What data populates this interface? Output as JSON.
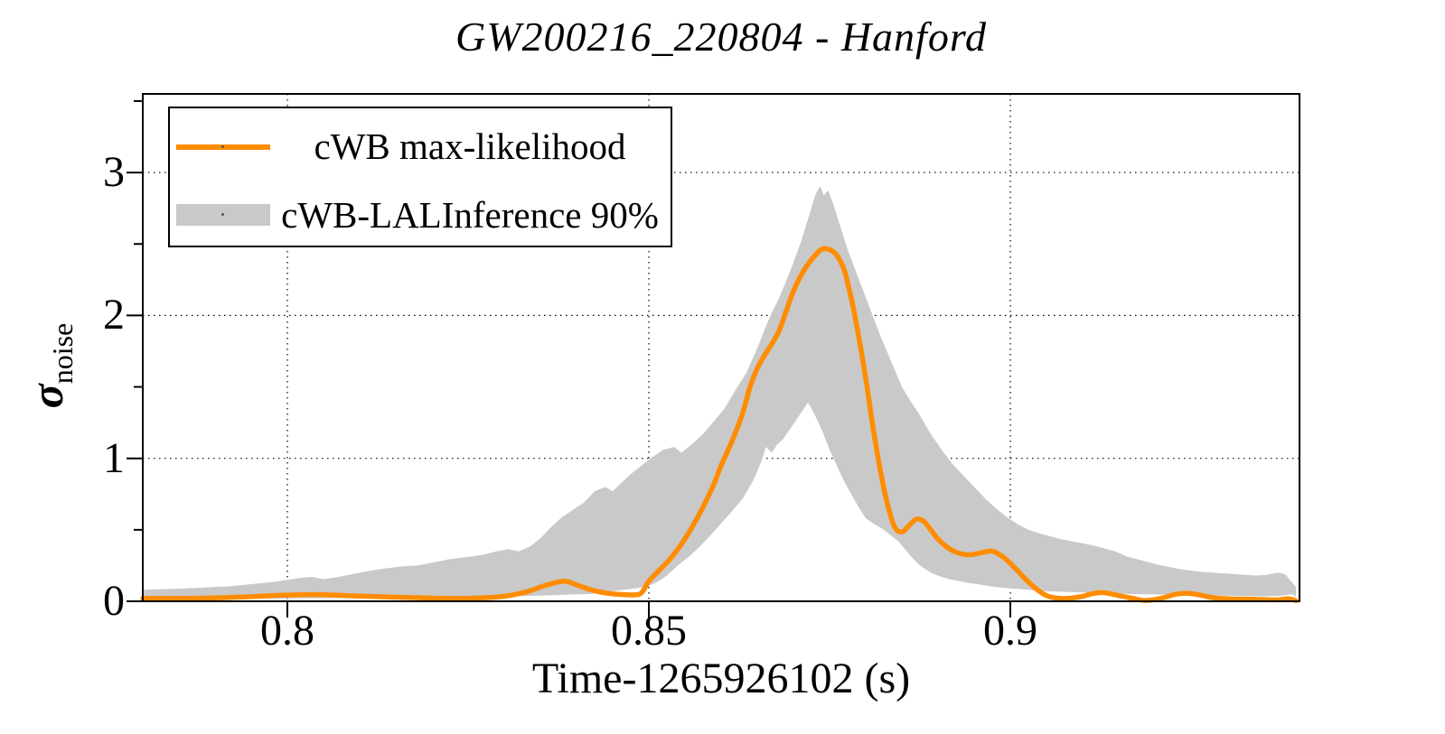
{
  "chart_data": {
    "type": "line",
    "title": "GW200216_220804 - Hanford",
    "xlabel": "Time-1265926102 (s)",
    "ylabel_base": "σ",
    "ylabel_sub": "noise",
    "xlim": [
      0.78,
      0.94
    ],
    "ylim": [
      0,
      3.55
    ],
    "xticks": [
      {
        "value": 0.8,
        "label": "0.8"
      },
      {
        "value": 0.85,
        "label": "0.85"
      },
      {
        "value": 0.9,
        "label": "0.9"
      }
    ],
    "yticks": [
      {
        "value": 0,
        "label": "0"
      },
      {
        "value": 1,
        "label": "1"
      },
      {
        "value": 2,
        "label": "2"
      },
      {
        "value": 3,
        "label": "3"
      }
    ],
    "yticks_minor": [
      0.5,
      1.5,
      2.5,
      3.5
    ],
    "grid": {
      "x": [
        0.8,
        0.85,
        0.9
      ],
      "y": [
        1,
        2,
        3
      ],
      "style": "dotted"
    },
    "colors": {
      "line": "#FF8C00",
      "band": "#C9C9C9",
      "frame": "#000000",
      "grid": "#000000"
    },
    "legend": {
      "position": "top-left",
      "entries": [
        {
          "label": "cWB max-likelihood",
          "type": "line",
          "color": "#FF8C00"
        },
        {
          "label": "cWB-LALInference 90%",
          "type": "band",
          "color": "#C9C9C9"
        }
      ]
    },
    "series": [
      {
        "name": "cWB max-likelihood",
        "type": "line",
        "color": "#FF8C00",
        "points": [
          [
            0.78,
            0.02
          ],
          [
            0.784,
            0.02
          ],
          [
            0.788,
            0.022
          ],
          [
            0.792,
            0.027
          ],
          [
            0.796,
            0.035
          ],
          [
            0.799,
            0.042
          ],
          [
            0.802,
            0.046
          ],
          [
            0.805,
            0.046
          ],
          [
            0.808,
            0.04
          ],
          [
            0.811,
            0.035
          ],
          [
            0.814,
            0.03
          ],
          [
            0.818,
            0.025
          ],
          [
            0.822,
            0.02
          ],
          [
            0.826,
            0.022
          ],
          [
            0.83,
            0.035
          ],
          [
            0.833,
            0.065
          ],
          [
            0.835,
            0.1
          ],
          [
            0.837,
            0.13
          ],
          [
            0.8385,
            0.14
          ],
          [
            0.84,
            0.115
          ],
          [
            0.842,
            0.08
          ],
          [
            0.844,
            0.058
          ],
          [
            0.846,
            0.048
          ],
          [
            0.848,
            0.045
          ],
          [
            0.849,
            0.06
          ],
          [
            0.85,
            0.14
          ],
          [
            0.8515,
            0.22
          ],
          [
            0.853,
            0.3
          ],
          [
            0.8545,
            0.4
          ],
          [
            0.856,
            0.52
          ],
          [
            0.8575,
            0.66
          ],
          [
            0.859,
            0.82
          ],
          [
            0.86,
            0.95
          ],
          [
            0.8615,
            1.12
          ],
          [
            0.863,
            1.32
          ],
          [
            0.864,
            1.5
          ],
          [
            0.865,
            1.63
          ],
          [
            0.866,
            1.72
          ],
          [
            0.867,
            1.8
          ],
          [
            0.868,
            1.89
          ],
          [
            0.869,
            2.03
          ],
          [
            0.87,
            2.17
          ],
          [
            0.8715,
            2.32
          ],
          [
            0.873,
            2.42
          ],
          [
            0.874,
            2.465
          ],
          [
            0.875,
            2.46
          ],
          [
            0.876,
            2.42
          ],
          [
            0.877,
            2.32
          ],
          [
            0.878,
            2.12
          ],
          [
            0.879,
            1.86
          ],
          [
            0.88,
            1.56
          ],
          [
            0.881,
            1.22
          ],
          [
            0.882,
            0.92
          ],
          [
            0.883,
            0.68
          ],
          [
            0.884,
            0.52
          ],
          [
            0.885,
            0.485
          ],
          [
            0.886,
            0.53
          ],
          [
            0.887,
            0.575
          ],
          [
            0.888,
            0.56
          ],
          [
            0.889,
            0.5
          ],
          [
            0.89,
            0.435
          ],
          [
            0.8915,
            0.37
          ],
          [
            0.893,
            0.335
          ],
          [
            0.8945,
            0.325
          ],
          [
            0.896,
            0.34
          ],
          [
            0.8975,
            0.35
          ],
          [
            0.899,
            0.31
          ],
          [
            0.9005,
            0.24
          ],
          [
            0.902,
            0.16
          ],
          [
            0.9035,
            0.09
          ],
          [
            0.905,
            0.04
          ],
          [
            0.9065,
            0.022
          ],
          [
            0.908,
            0.02
          ],
          [
            0.91,
            0.035
          ],
          [
            0.9115,
            0.055
          ],
          [
            0.913,
            0.06
          ],
          [
            0.915,
            0.04
          ],
          [
            0.917,
            0.02
          ],
          [
            0.9185,
            0.006
          ],
          [
            0.92,
            0.012
          ],
          [
            0.9215,
            0.03
          ],
          [
            0.923,
            0.05
          ],
          [
            0.9245,
            0.056
          ],
          [
            0.926,
            0.046
          ],
          [
            0.9275,
            0.03
          ],
          [
            0.929,
            0.02
          ],
          [
            0.931,
            0.016
          ],
          [
            0.933,
            0.015
          ],
          [
            0.935,
            0.012
          ],
          [
            0.937,
            0.01
          ],
          [
            0.9385,
            0.018
          ],
          [
            0.9395,
            0.004
          ]
        ]
      },
      {
        "name": "cWB-LALInference 90% upper envelope",
        "type": "band-upper",
        "color": "#C9C9C9",
        "points": [
          [
            0.78,
            0.08
          ],
          [
            0.783,
            0.085
          ],
          [
            0.786,
            0.09
          ],
          [
            0.789,
            0.098
          ],
          [
            0.792,
            0.105
          ],
          [
            0.795,
            0.12
          ],
          [
            0.798,
            0.135
          ],
          [
            0.8,
            0.15
          ],
          [
            0.802,
            0.165
          ],
          [
            0.8035,
            0.17
          ],
          [
            0.805,
            0.155
          ],
          [
            0.807,
            0.17
          ],
          [
            0.809,
            0.19
          ],
          [
            0.811,
            0.21
          ],
          [
            0.8135,
            0.23
          ],
          [
            0.816,
            0.245
          ],
          [
            0.818,
            0.25
          ],
          [
            0.82,
            0.27
          ],
          [
            0.8225,
            0.295
          ],
          [
            0.825,
            0.31
          ],
          [
            0.827,
            0.325
          ],
          [
            0.829,
            0.35
          ],
          [
            0.8305,
            0.365
          ],
          [
            0.832,
            0.35
          ],
          [
            0.8335,
            0.38
          ],
          [
            0.835,
            0.44
          ],
          [
            0.8365,
            0.52
          ],
          [
            0.838,
            0.59
          ],
          [
            0.8395,
            0.64
          ],
          [
            0.841,
            0.69
          ],
          [
            0.8425,
            0.77
          ],
          [
            0.844,
            0.8
          ],
          [
            0.845,
            0.77
          ],
          [
            0.846,
            0.82
          ],
          [
            0.8475,
            0.89
          ],
          [
            0.849,
            0.95
          ],
          [
            0.8505,
            1.01
          ],
          [
            0.852,
            1.06
          ],
          [
            0.8535,
            1.08
          ],
          [
            0.8545,
            1.04
          ],
          [
            0.856,
            1.1
          ],
          [
            0.8575,
            1.17
          ],
          [
            0.859,
            1.26
          ],
          [
            0.8605,
            1.35
          ],
          [
            0.862,
            1.48
          ],
          [
            0.8635,
            1.6
          ],
          [
            0.865,
            1.77
          ],
          [
            0.866,
            1.9
          ],
          [
            0.867,
            2.02
          ],
          [
            0.868,
            2.12
          ],
          [
            0.869,
            2.24
          ],
          [
            0.87,
            2.37
          ],
          [
            0.871,
            2.51
          ],
          [
            0.872,
            2.67
          ],
          [
            0.873,
            2.84
          ],
          [
            0.8737,
            2.905
          ],
          [
            0.8742,
            2.84
          ],
          [
            0.8748,
            2.875
          ],
          [
            0.8755,
            2.78
          ],
          [
            0.8765,
            2.62
          ],
          [
            0.8775,
            2.46
          ],
          [
            0.879,
            2.26
          ],
          [
            0.8805,
            2.06
          ],
          [
            0.882,
            1.86
          ],
          [
            0.8835,
            1.68
          ],
          [
            0.885,
            1.5
          ],
          [
            0.8862,
            1.4
          ],
          [
            0.8875,
            1.3
          ],
          [
            0.889,
            1.17
          ],
          [
            0.8905,
            1.06
          ],
          [
            0.892,
            0.96
          ],
          [
            0.8935,
            0.88
          ],
          [
            0.895,
            0.8
          ],
          [
            0.8965,
            0.72
          ],
          [
            0.898,
            0.65
          ],
          [
            0.8995,
            0.59
          ],
          [
            0.901,
            0.54
          ],
          [
            0.9025,
            0.5
          ],
          [
            0.904,
            0.475
          ],
          [
            0.9055,
            0.455
          ],
          [
            0.907,
            0.435
          ],
          [
            0.9085,
            0.42
          ],
          [
            0.91,
            0.405
          ],
          [
            0.9115,
            0.39
          ],
          [
            0.913,
            0.37
          ],
          [
            0.9145,
            0.35
          ],
          [
            0.916,
            0.315
          ],
          [
            0.9175,
            0.295
          ],
          [
            0.919,
            0.275
          ],
          [
            0.9205,
            0.255
          ],
          [
            0.922,
            0.24
          ],
          [
            0.9235,
            0.225
          ],
          [
            0.925,
            0.215
          ],
          [
            0.9265,
            0.205
          ],
          [
            0.928,
            0.2
          ],
          [
            0.9295,
            0.195
          ],
          [
            0.931,
            0.19
          ],
          [
            0.9325,
            0.185
          ],
          [
            0.934,
            0.18
          ],
          [
            0.9355,
            0.185
          ],
          [
            0.937,
            0.2
          ],
          [
            0.938,
            0.19
          ],
          [
            0.939,
            0.13
          ],
          [
            0.9395,
            0.1
          ]
        ]
      },
      {
        "name": "cWB-LALInference 90% lower envelope",
        "type": "band-lower",
        "color": "#C9C9C9",
        "points": [
          [
            0.78,
            0.005
          ],
          [
            0.785,
            0.01
          ],
          [
            0.79,
            0.015
          ],
          [
            0.795,
            0.018
          ],
          [
            0.8,
            0.02
          ],
          [
            0.805,
            0.022
          ],
          [
            0.81,
            0.025
          ],
          [
            0.815,
            0.028
          ],
          [
            0.82,
            0.03
          ],
          [
            0.825,
            0.032
          ],
          [
            0.83,
            0.035
          ],
          [
            0.835,
            0.04
          ],
          [
            0.838,
            0.045
          ],
          [
            0.841,
            0.05
          ],
          [
            0.8435,
            0.055
          ],
          [
            0.845,
            0.07
          ],
          [
            0.8465,
            0.08
          ],
          [
            0.848,
            0.09
          ],
          [
            0.8495,
            0.1
          ],
          [
            0.851,
            0.13
          ],
          [
            0.8525,
            0.18
          ],
          [
            0.854,
            0.25
          ],
          [
            0.8555,
            0.31
          ],
          [
            0.857,
            0.38
          ],
          [
            0.8585,
            0.46
          ],
          [
            0.86,
            0.545
          ],
          [
            0.8615,
            0.63
          ],
          [
            0.863,
            0.72
          ],
          [
            0.8645,
            0.85
          ],
          [
            0.8655,
            0.97
          ],
          [
            0.8662,
            1.08
          ],
          [
            0.867,
            1.04
          ],
          [
            0.8678,
            1.1
          ],
          [
            0.8685,
            1.13
          ],
          [
            0.87,
            1.24
          ],
          [
            0.8712,
            1.33
          ],
          [
            0.872,
            1.39
          ],
          [
            0.8728,
            1.32
          ],
          [
            0.874,
            1.19
          ],
          [
            0.875,
            1.06
          ],
          [
            0.876,
            0.95
          ],
          [
            0.877,
            0.84
          ],
          [
            0.878,
            0.75
          ],
          [
            0.879,
            0.66
          ],
          [
            0.88,
            0.58
          ],
          [
            0.8812,
            0.54
          ],
          [
            0.8825,
            0.5
          ],
          [
            0.8835,
            0.46
          ],
          [
            0.8845,
            0.42
          ],
          [
            0.8855,
            0.36
          ],
          [
            0.8865,
            0.3
          ],
          [
            0.8875,
            0.25
          ],
          [
            0.889,
            0.2
          ],
          [
            0.8905,
            0.17
          ],
          [
            0.892,
            0.15
          ],
          [
            0.894,
            0.13
          ],
          [
            0.896,
            0.115
          ],
          [
            0.898,
            0.1
          ],
          [
            0.9,
            0.09
          ],
          [
            0.9025,
            0.08
          ],
          [
            0.905,
            0.07
          ],
          [
            0.908,
            0.065
          ],
          [
            0.911,
            0.06
          ],
          [
            0.914,
            0.055
          ],
          [
            0.917,
            0.05
          ],
          [
            0.92,
            0.048
          ],
          [
            0.923,
            0.045
          ],
          [
            0.926,
            0.045
          ],
          [
            0.929,
            0.04
          ],
          [
            0.932,
            0.038
          ],
          [
            0.935,
            0.035
          ],
          [
            0.9375,
            0.04
          ],
          [
            0.939,
            0.05
          ],
          [
            0.9395,
            0.03
          ]
        ]
      }
    ]
  }
}
